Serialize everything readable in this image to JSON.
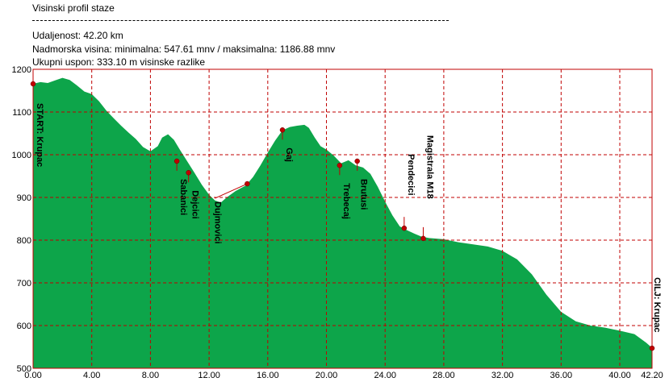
{
  "header": {
    "title": "Visinski profil staze",
    "distance": "Udaljenost: 42.20 km",
    "elevation": "Nadmorska visina:  minimalna: 547.61 mnv   /  maksimalna: 1186.88 mnv",
    "ascent": "Ukupni uspon: 333.10 m visinske razlike"
  },
  "colors": {
    "fill": "#0da54a",
    "frame": "#c00000",
    "grid": "#c00000",
    "marker": "#c00000"
  },
  "chart_data": {
    "type": "area",
    "xlabel": "",
    "ylabel": "",
    "xlim": [
      0,
      42.2
    ],
    "ylim": [
      500,
      1200
    ],
    "grid": true,
    "x_ticks": [
      "0.00",
      "4.00",
      "8.00",
      "12.00",
      "16.00",
      "20.00",
      "24.00",
      "28.00",
      "32.00",
      "36.00",
      "40.00",
      "42.20"
    ],
    "y_ticks": [
      "500",
      "600",
      "700",
      "800",
      "900",
      "1000",
      "1100",
      "1200"
    ],
    "profile": [
      [
        0,
        1166
      ],
      [
        0.5,
        1170
      ],
      [
        1,
        1168
      ],
      [
        1.5,
        1174
      ],
      [
        2,
        1180
      ],
      [
        2.5,
        1175
      ],
      [
        3,
        1162
      ],
      [
        3.5,
        1148
      ],
      [
        4,
        1142
      ],
      [
        4.5,
        1125
      ],
      [
        5,
        1103
      ],
      [
        5.5,
        1085
      ],
      [
        6,
        1068
      ],
      [
        6.5,
        1052
      ],
      [
        7,
        1037
      ],
      [
        7.5,
        1018
      ],
      [
        8,
        1008
      ],
      [
        8.5,
        1020
      ],
      [
        8.8,
        1040
      ],
      [
        9.2,
        1048
      ],
      [
        9.6,
        1035
      ],
      [
        10,
        1012
      ],
      [
        10.5,
        985
      ],
      [
        11,
        958
      ],
      [
        11.5,
        930
      ],
      [
        12,
        906
      ],
      [
        12.4,
        893
      ],
      [
        12.8,
        888
      ],
      [
        13.2,
        900
      ],
      [
        13.8,
        915
      ],
      [
        14.5,
        928
      ],
      [
        15,
        948
      ],
      [
        15.5,
        975
      ],
      [
        16,
        1005
      ],
      [
        16.5,
        1033
      ],
      [
        17,
        1057
      ],
      [
        17.5,
        1065
      ],
      [
        18,
        1068
      ],
      [
        18.5,
        1070
      ],
      [
        18.8,
        1063
      ],
      [
        19.2,
        1040
      ],
      [
        19.6,
        1020
      ],
      [
        20,
        1012
      ],
      [
        20.5,
        998
      ],
      [
        21,
        980
      ],
      [
        21.5,
        987
      ],
      [
        22,
        975
      ],
      [
        22.5,
        970
      ],
      [
        23,
        955
      ],
      [
        23.5,
        925
      ],
      [
        24,
        890
      ],
      [
        24.5,
        858
      ],
      [
        25,
        832
      ],
      [
        25.5,
        823
      ],
      [
        26,
        815
      ],
      [
        26.5,
        808
      ],
      [
        27,
        805
      ],
      [
        28,
        802
      ],
      [
        29,
        795
      ],
      [
        30,
        790
      ],
      [
        31,
        785
      ],
      [
        32,
        775
      ],
      [
        33,
        755
      ],
      [
        34,
        720
      ],
      [
        35,
        672
      ],
      [
        36,
        632
      ],
      [
        37,
        610
      ],
      [
        38,
        600
      ],
      [
        39,
        595
      ],
      [
        40,
        588
      ],
      [
        41,
        580
      ],
      [
        41.8,
        560
      ],
      [
        42.2,
        548
      ]
    ],
    "waypoints": [
      {
        "name": "START: Krupac",
        "x": 0.0,
        "y": 1166
      },
      {
        "name": "Sabanici",
        "x": 9.8,
        "y": 985
      },
      {
        "name": "Dejcici",
        "x": 10.6,
        "y": 958
      },
      {
        "name": "Dujmovici",
        "x": 14.6,
        "y": 932
      },
      {
        "name": "Gaj",
        "x": 17.0,
        "y": 1058
      },
      {
        "name": "Trebecaj",
        "x": 20.9,
        "y": 975
      },
      {
        "name": "Brutusi",
        "x": 22.1,
        "y": 985
      },
      {
        "name": "Pendecici",
        "x": 25.3,
        "y": 828
      },
      {
        "name": "Magistrala M18",
        "x": 26.6,
        "y": 804
      },
      {
        "name": "CILJ: Krupac",
        "x": 42.2,
        "y": 547
      }
    ]
  }
}
